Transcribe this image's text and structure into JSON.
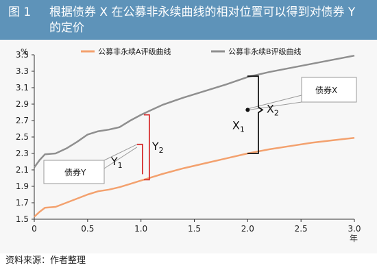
{
  "figure": {
    "label": "图 1",
    "title": "根据债券 X 在公募非永续曲线的相对位置可以得到对债券 Y 的定价",
    "source": "资料来源：作者整理"
  },
  "chart_data": {
    "type": "line",
    "title": "",
    "xlabel": "年",
    "ylabel": "%",
    "xlim": [
      0,
      3.0
    ],
    "ylim": [
      1.5,
      3.5
    ],
    "x_ticks": [
      "0",
      "0.5",
      "1.0",
      "1.5",
      "2.0",
      "2.5",
      "3.0"
    ],
    "y_ticks": [
      "1.5",
      "1.7",
      "1.9",
      "2.1",
      "2.3",
      "2.5",
      "2.7",
      "2.9",
      "3.1",
      "3.3",
      "3.5"
    ],
    "grid": false,
    "legend_position": "top",
    "series": [
      {
        "name": "公募非永续A评级曲线",
        "color": "#f3a16e",
        "x": [
          0,
          0.05,
          0.1,
          0.2,
          0.3,
          0.4,
          0.5,
          0.6,
          0.7,
          0.8,
          0.9,
          1.0,
          1.1,
          1.2,
          1.4,
          1.6,
          1.8,
          2.0,
          2.2,
          2.4,
          2.6,
          2.8,
          3.0
        ],
        "y": [
          1.53,
          1.59,
          1.64,
          1.65,
          1.7,
          1.75,
          1.8,
          1.84,
          1.86,
          1.89,
          1.93,
          1.97,
          2.01,
          2.05,
          2.12,
          2.18,
          2.24,
          2.3,
          2.35,
          2.39,
          2.43,
          2.46,
          2.49
        ]
      },
      {
        "name": "公募非永续B评级曲线",
        "color": "#8f8f8f",
        "x": [
          0,
          0.05,
          0.1,
          0.2,
          0.3,
          0.4,
          0.5,
          0.6,
          0.7,
          0.8,
          0.9,
          1.0,
          1.1,
          1.2,
          1.4,
          1.6,
          1.8,
          2.0,
          2.2,
          2.4,
          2.6,
          2.8,
          3.0
        ],
        "y": [
          2.13,
          2.22,
          2.29,
          2.3,
          2.36,
          2.44,
          2.53,
          2.57,
          2.59,
          2.62,
          2.7,
          2.77,
          2.83,
          2.89,
          2.98,
          3.06,
          3.14,
          3.23,
          3.29,
          3.34,
          3.39,
          3.44,
          3.49
        ]
      }
    ],
    "annotations": {
      "bond_x_label": "债券X",
      "bond_y_label": "债券Y",
      "x1": "X",
      "x2": "X",
      "y1": "Y",
      "y2": "Y",
      "sub1": "1",
      "sub2": "2",
      "bond_x_point": {
        "x": 2.0,
        "y": 2.83
      },
      "x_bracket": {
        "x": 2.1,
        "y_low": 2.3,
        "y_high": 3.24
      },
      "y_bracket": {
        "x": 0.95,
        "y_low": 1.98,
        "y_mid": 2.41,
        "y_high": 2.77
      }
    }
  }
}
